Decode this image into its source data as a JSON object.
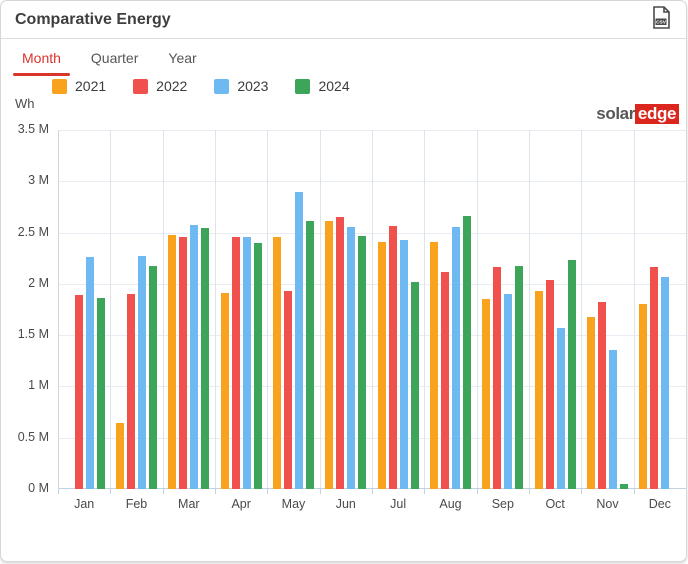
{
  "header": {
    "title": "Comparative Energy"
  },
  "tabs": [
    {
      "label": "Month",
      "active": true
    },
    {
      "label": "Quarter",
      "active": false
    },
    {
      "label": "Year",
      "active": false
    }
  ],
  "branding": {
    "logo_part1": "solar",
    "logo_part2": "edge"
  },
  "chart_data": {
    "type": "bar",
    "title": "Comparative Energy",
    "unit": "Wh",
    "ylabel": "Wh",
    "ylim_mwh": [
      0,
      3.5
    ],
    "ytick_labels": [
      "3.5 M",
      "3 M",
      "2.5 M",
      "2 M",
      "1.5 M",
      "1 M",
      "0.5 M",
      "0 M"
    ],
    "grid": true,
    "legend_position": "top",
    "categories": [
      "Jan",
      "Feb",
      "Mar",
      "Apr",
      "May",
      "Jun",
      "Jul",
      "Aug",
      "Sep",
      "Oct",
      "Nov",
      "Dec"
    ],
    "series": [
      {
        "name": "2021",
        "color": "#F8A21D",
        "values_mwh": [
          null,
          0.64,
          2.48,
          1.91,
          2.46,
          2.61,
          2.41,
          2.41,
          1.85,
          1.93,
          1.68,
          1.8
        ]
      },
      {
        "name": "2022",
        "color": "#F0514D",
        "values_mwh": [
          1.89,
          1.9,
          2.46,
          2.46,
          1.93,
          2.65,
          2.56,
          2.12,
          2.16,
          2.04,
          1.82,
          2.16
        ]
      },
      {
        "name": "2023",
        "color": "#6FB9F2",
        "values_mwh": [
          2.26,
          2.27,
          2.57,
          2.46,
          2.9,
          2.55,
          2.43,
          2.55,
          1.9,
          1.57,
          1.36,
          2.07
        ]
      },
      {
        "name": "2024",
        "color": "#3CA55A",
        "values_mwh": [
          1.86,
          2.17,
          2.54,
          2.4,
          2.61,
          2.47,
          2.02,
          2.66,
          2.17,
          2.23,
          0.05,
          null
        ]
      }
    ]
  },
  "colors": {
    "tab_active": "#d9352a",
    "logo_red": "#db261d",
    "grid_h": "#e7edf3",
    "grid_v": "#dfe4e9",
    "axis": "#c3d2e0"
  }
}
